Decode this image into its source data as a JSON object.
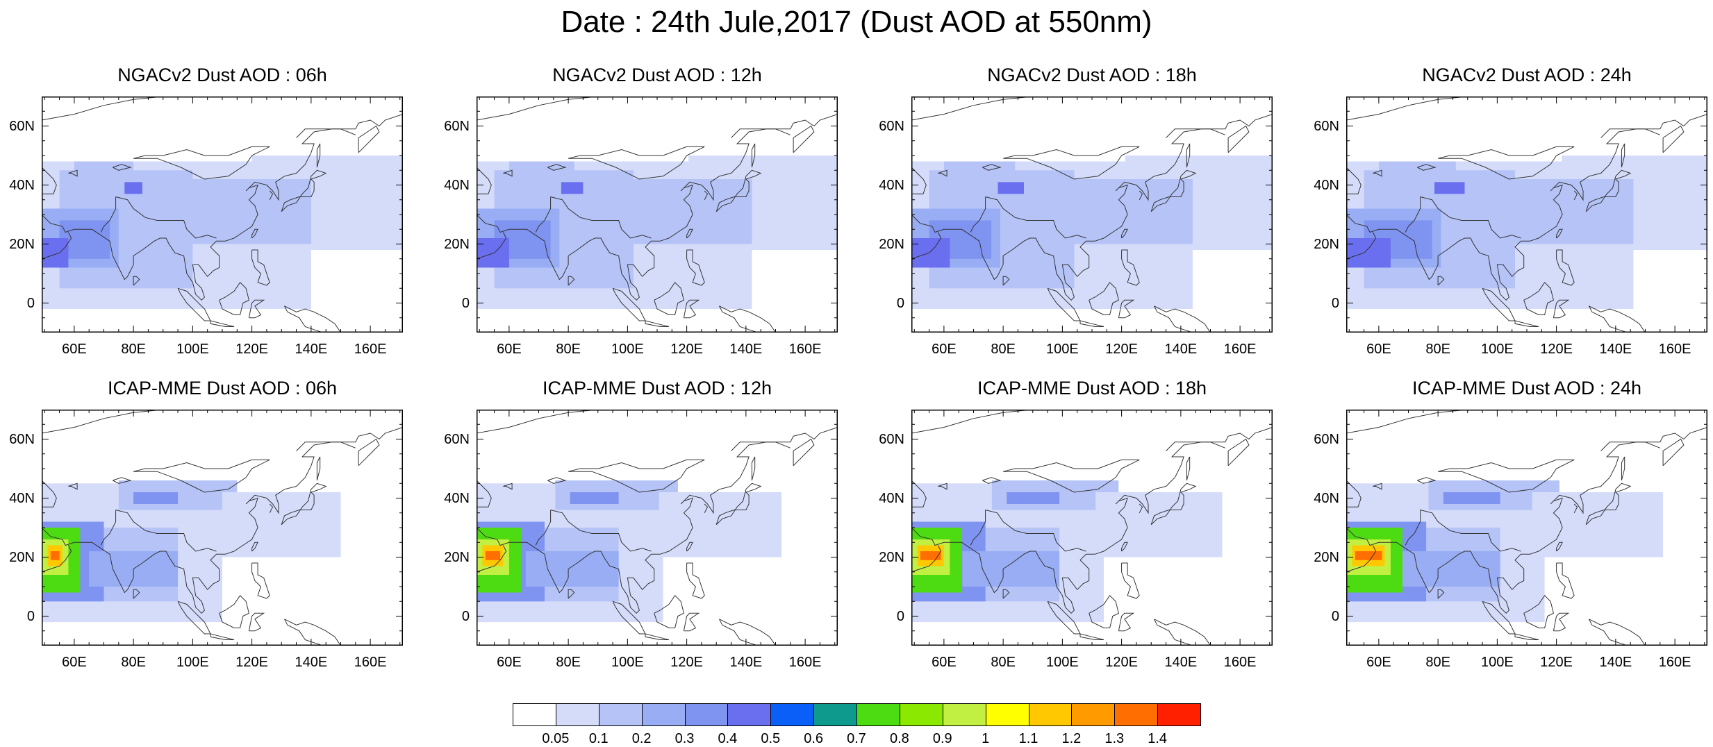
{
  "title": "Date : 24th Jule,2017 (Dust AOD at 550nm)",
  "axes": {
    "lon_range": [
      49,
      171
    ],
    "lat_range": [
      -10,
      70
    ],
    "x_ticks": [
      {
        "value": 60,
        "label": "60E"
      },
      {
        "value": 80,
        "label": "80E"
      },
      {
        "value": 100,
        "label": "100E"
      },
      {
        "value": 120,
        "label": "120E"
      },
      {
        "value": 140,
        "label": "140E"
      },
      {
        "value": 160,
        "label": "160E"
      }
    ],
    "y_ticks": [
      {
        "value": 60,
        "label": "60N"
      },
      {
        "value": 40,
        "label": "40N"
      },
      {
        "value": 20,
        "label": "20N"
      },
      {
        "value": 0,
        "label": "0"
      }
    ]
  },
  "panels": [
    {
      "id": "ngac-06",
      "title": "NGACv2 Dust AOD : 06h"
    },
    {
      "id": "ngac-12",
      "title": "NGACv2 Dust AOD : 12h"
    },
    {
      "id": "ngac-18",
      "title": "NGACv2 Dust AOD : 18h"
    },
    {
      "id": "ngac-24",
      "title": "NGACv2 Dust AOD : 24h"
    },
    {
      "id": "icap-06",
      "title": "ICAP-MME Dust AOD : 06h"
    },
    {
      "id": "icap-12",
      "title": "ICAP-MME Dust AOD : 12h"
    },
    {
      "id": "icap-18",
      "title": "ICAP-MME Dust AOD : 18h"
    },
    {
      "id": "icap-24",
      "title": "ICAP-MME Dust AOD : 24h"
    }
  ],
  "colorbar": {
    "labels": [
      "0.05",
      "0.1",
      "0.2",
      "0.3",
      "0.4",
      "0.5",
      "0.6",
      "0.7",
      "0.8",
      "0.9",
      "1",
      "1.1",
      "1.2",
      "1.3",
      "1.4"
    ],
    "colors": [
      "#ffffff",
      "#d4dcfa",
      "#b5c3f7",
      "#98adf4",
      "#7f93f0",
      "#6a6ff0",
      "#0a5ff8",
      "#0f9a8e",
      "#4ddc12",
      "#8be800",
      "#c2f042",
      "#ffff00",
      "#ffc800",
      "#ff9a00",
      "#ff6e00",
      "#ff2000"
    ]
  }
}
